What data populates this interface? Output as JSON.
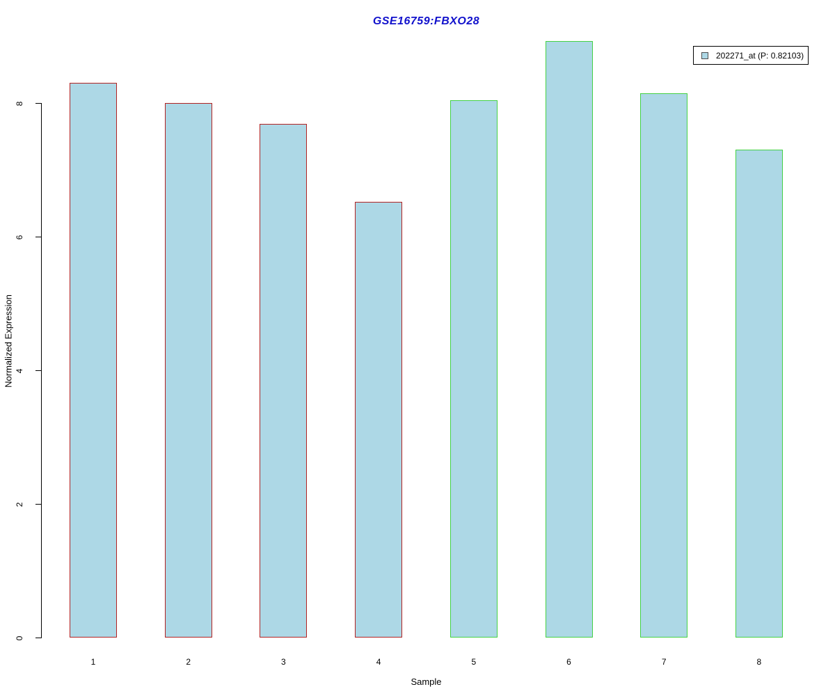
{
  "chart_data": {
    "type": "bar",
    "title": "GSE16759:FBXO28",
    "title_color": "#1111CC",
    "xlabel": "Sample",
    "ylabel": "Normalized Expression",
    "categories": [
      "1",
      "2",
      "3",
      "4",
      "5",
      "6",
      "7",
      "8"
    ],
    "values": [
      8.3,
      8.0,
      7.69,
      6.52,
      8.04,
      8.93,
      8.15,
      7.3
    ],
    "bar_fill": "#ADD8E6",
    "bar_border_colors": [
      "#B22222",
      "#B22222",
      "#B22222",
      "#B22222",
      "#44D144",
      "#44D144",
      "#44D144",
      "#44D144"
    ],
    "yticks": [
      0,
      2,
      4,
      6,
      8
    ],
    "ylim": [
      0,
      8.95
    ],
    "grid": false,
    "legend": {
      "label": "202271_at (P: 0.82103)",
      "swatch_fill": "#ADD8E6",
      "position": "top-right"
    }
  }
}
